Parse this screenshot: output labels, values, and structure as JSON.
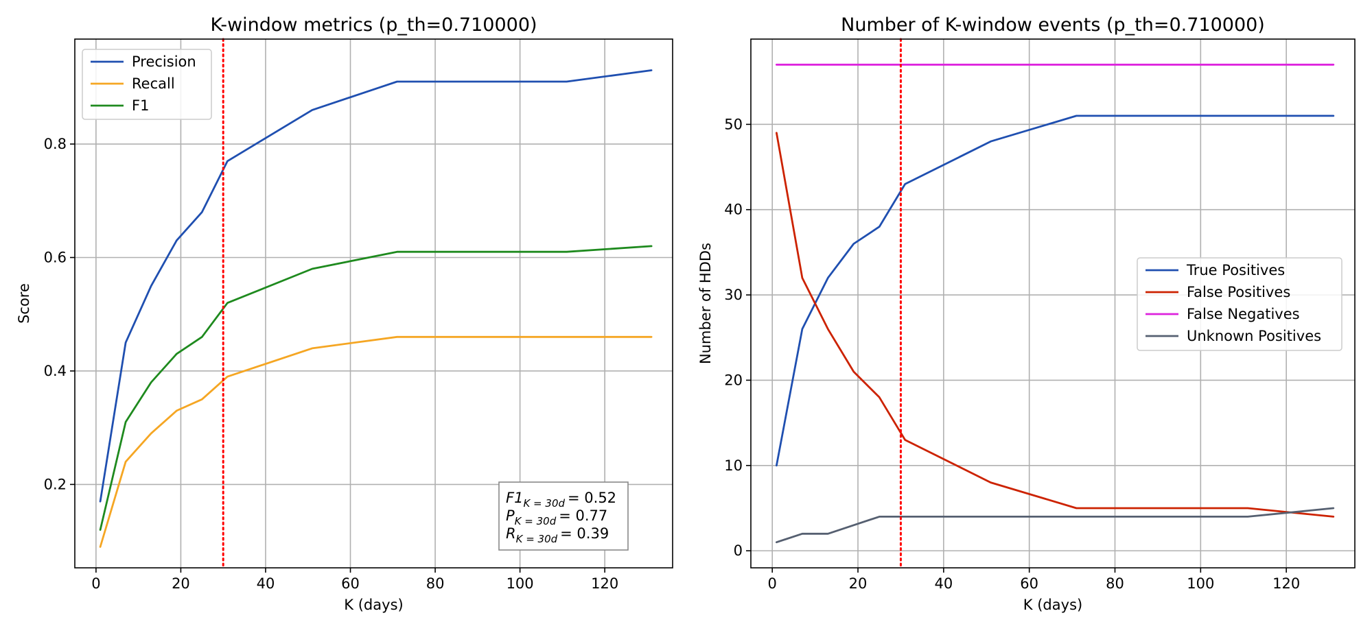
{
  "chart_data": [
    {
      "type": "line",
      "title": "K-window metrics (p_th=0.710000)",
      "xlabel": "K (days)",
      "ylabel": "Score",
      "xlim": [
        -5,
        136
      ],
      "ylim": [
        0.053,
        0.985
      ],
      "xticks": [
        0,
        20,
        40,
        60,
        80,
        100,
        120
      ],
      "yticks": [
        0.2,
        0.4,
        0.6,
        0.8
      ],
      "ytick_labels": [
        "0.2",
        "0.4",
        "0.6",
        "0.8"
      ],
      "grid": true,
      "legend": "upper-left",
      "x": [
        1,
        7,
        13,
        19,
        25,
        31,
        51,
        71,
        91,
        111,
        131
      ],
      "series": [
        {
          "name": "Precision",
          "color": "#1f4fb0",
          "values": [
            0.17,
            0.45,
            0.55,
            0.63,
            0.68,
            0.77,
            0.86,
            0.91,
            0.91,
            0.91,
            0.93
          ]
        },
        {
          "name": "Recall",
          "color": "#f5a623",
          "values": [
            0.09,
            0.24,
            0.29,
            0.33,
            0.35,
            0.39,
            0.44,
            0.46,
            0.46,
            0.46,
            0.46
          ]
        },
        {
          "name": "F1",
          "color": "#1e8a1e",
          "values": [
            0.12,
            0.31,
            0.38,
            0.43,
            0.46,
            0.52,
            0.58,
            0.61,
            0.61,
            0.61,
            0.62
          ]
        }
      ],
      "vline": {
        "x": 30,
        "color": "#ff0000"
      },
      "annotation": [
        {
          "main": "F1",
          "sub": "K = 30d",
          "value": "= 0.52"
        },
        {
          "main": "P",
          "sub": "K = 30d",
          "value": "= 0.77"
        },
        {
          "main": "R",
          "sub": "K = 30d",
          "value": "= 0.39"
        }
      ]
    },
    {
      "type": "line",
      "title": "Number of K-window events (p_th=0.710000)",
      "xlabel": "K (days)",
      "ylabel": "Number of HDDs",
      "xlim": [
        -5,
        136
      ],
      "ylim": [
        -2,
        60
      ],
      "xticks": [
        0,
        20,
        40,
        60,
        80,
        100,
        120
      ],
      "yticks": [
        0,
        10,
        20,
        30,
        40,
        50
      ],
      "ytick_labels": [
        "0",
        "10",
        "20",
        "30",
        "40",
        "50"
      ],
      "grid": true,
      "legend": "center-right",
      "x": [
        1,
        7,
        13,
        19,
        25,
        31,
        51,
        71,
        91,
        111,
        131
      ],
      "series": [
        {
          "name": "True Positives",
          "color": "#1f4fb0",
          "values": [
            10,
            26,
            32,
            36,
            38,
            43,
            48,
            51,
            51,
            51,
            51
          ]
        },
        {
          "name": "False Positives",
          "color": "#cc2200",
          "values": [
            49,
            32,
            26,
            21,
            18,
            13,
            8,
            5,
            5,
            5,
            4
          ]
        },
        {
          "name": "False Negatives",
          "color": "#dd22dd",
          "values": [
            57,
            57,
            57,
            57,
            57,
            57,
            57,
            57,
            57,
            57,
            57
          ]
        },
        {
          "name": "Unknown Positives",
          "color": "#555f70",
          "values": [
            1,
            2,
            2,
            3,
            4,
            4,
            4,
            4,
            4,
            4,
            5
          ]
        }
      ],
      "vline": {
        "x": 30,
        "color": "#ff0000"
      }
    }
  ]
}
